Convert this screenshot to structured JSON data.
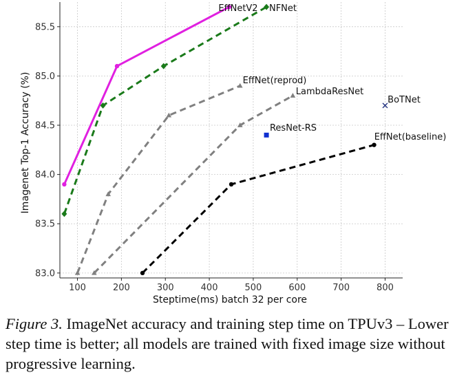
{
  "chart_data": {
    "type": "line",
    "title": "",
    "xlabel": "Steptime(ms) batch 32 per core",
    "ylabel": "Imagenet Top-1 Accuracy (%)",
    "xlim": [
      60,
      840
    ],
    "ylim": [
      82.95,
      85.75
    ],
    "xticks": [
      100,
      200,
      300,
      400,
      500,
      600,
      700,
      800
    ],
    "yticks": [
      83.0,
      83.5,
      84.0,
      84.5,
      85.0,
      85.5
    ],
    "ytick_labels": [
      "83.0",
      "83.5",
      "84.0",
      "84.5",
      "85.0",
      "85.5"
    ],
    "grid": true,
    "legend": "none",
    "series": [
      {
        "name": "EffNetV2",
        "style": "solid",
        "marker": "circle",
        "color": "#e020e0",
        "x": [
          70,
          190,
          445
        ],
        "y": [
          83.9,
          85.1,
          85.7
        ]
      },
      {
        "name": "NFNet",
        "style": "dashed",
        "marker": "diamond",
        "color": "#1a7a1a",
        "x": [
          70,
          158,
          296,
          530
        ],
        "y": [
          83.6,
          84.7,
          85.1,
          85.7
        ]
      },
      {
        "name": "EffNet(reprod)",
        "style": "dashed",
        "marker": "triangle",
        "color": "#808080",
        "x": [
          100,
          170,
          308,
          470
        ],
        "y": [
          83.0,
          83.8,
          84.6,
          84.9
        ]
      },
      {
        "name": "LambdaResNet",
        "style": "dashed",
        "marker": "triangle",
        "color": "#808080",
        "x": [
          138,
          470,
          590
        ],
        "y": [
          83.0,
          84.5,
          84.8
        ]
      },
      {
        "name": "EffNet(baseline)",
        "style": "dashed",
        "marker": "circle",
        "color": "#000000",
        "x": [
          248,
          450,
          775
        ],
        "y": [
          83.0,
          83.9,
          84.3
        ]
      },
      {
        "name": "ResNet-RS",
        "style": "point",
        "marker": "square",
        "color": "#1030d0",
        "x": [
          530
        ],
        "y": [
          84.4
        ]
      },
      {
        "name": "BoTNet",
        "style": "point",
        "marker": "cross",
        "color": "#203080",
        "x": [
          800
        ],
        "y": [
          84.7
        ]
      }
    ]
  },
  "caption": {
    "figure_label": "Figure 3.",
    "text": " ImageNet accuracy and training step time on TPUv3 – Lower step time is better; all models are trained with fixed image size without progressive learning."
  }
}
